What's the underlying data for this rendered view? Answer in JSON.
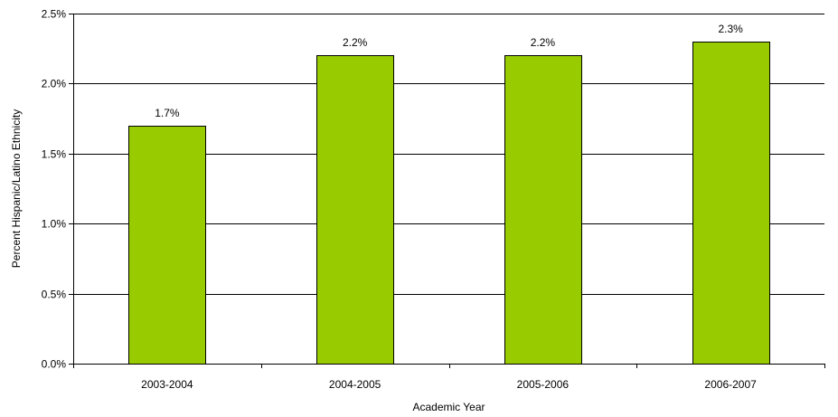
{
  "chart_data": {
    "type": "bar",
    "title": "",
    "xlabel": "Academic Year",
    "ylabel": "Percent Hispanic/Latino Ethnicity",
    "categories": [
      "2003-2004",
      "2004-2005",
      "2005-2006",
      "2006-2007"
    ],
    "values": [
      1.7,
      2.2,
      2.2,
      2.3
    ],
    "data_labels": [
      "1.7%",
      "2.2%",
      "2.2%",
      "2.3%"
    ],
    "ylim": [
      0,
      2.5
    ],
    "yticks": [
      0,
      0.5,
      1.0,
      1.5,
      2.0,
      2.5
    ],
    "ytick_labels": [
      "0.0%",
      "0.5%",
      "1.0%",
      "1.5%",
      "2.0%",
      "2.5%"
    ],
    "grid": true,
    "legend": "none",
    "bar_color": "#99cc00"
  }
}
